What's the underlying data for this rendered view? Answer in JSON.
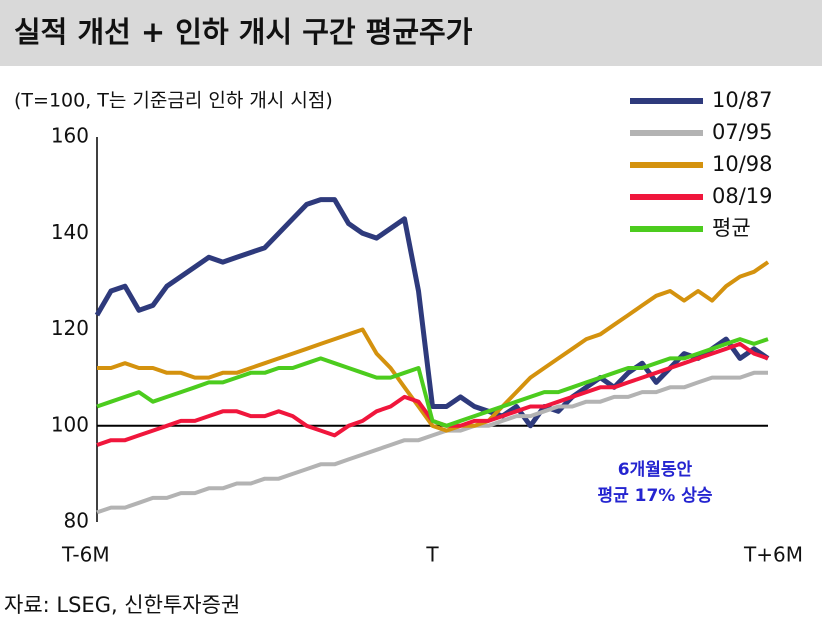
{
  "chart_data": {
    "type": "line",
    "title": "실적 개선 + 인하 개시 구간 평균주가",
    "subtitle": "(T=100, T는 기준금리 인하 개시 시점)",
    "source": "자료: LSEG, 신한투자증권",
    "annotation": [
      "6개월동안",
      "평균 17% 상승"
    ],
    "categories": [
      "T-6M",
      null,
      null,
      null,
      null,
      null,
      null,
      null,
      null,
      null,
      null,
      null,
      null,
      null,
      null,
      null,
      null,
      null,
      null,
      null,
      null,
      null,
      null,
      null,
      "T",
      null,
      null,
      null,
      null,
      null,
      null,
      null,
      null,
      null,
      null,
      null,
      null,
      null,
      null,
      null,
      null,
      null,
      null,
      null,
      null,
      null,
      null,
      null,
      "T+6M"
    ],
    "ylim": [
      80,
      160
    ],
    "yticks": [
      80,
      100,
      120,
      140,
      160
    ],
    "reference_line": 100,
    "series": [
      {
        "name": "10/87",
        "color": "#2e3a7c",
        "values": [
          123,
          128,
          129,
          124,
          125,
          129,
          131,
          133,
          135,
          134,
          135,
          136,
          137,
          140,
          143,
          146,
          147,
          147,
          142,
          140,
          139,
          141,
          143,
          128,
          104,
          104,
          106,
          104,
          103,
          102,
          104,
          100,
          104,
          103,
          106,
          108,
          110,
          108,
          111,
          113,
          109,
          112,
          115,
          114,
          116,
          118,
          114,
          116,
          114
        ]
      },
      {
        "name": "07/95",
        "color": "#b3b3b3",
        "values": [
          82,
          83,
          83,
          84,
          85,
          85,
          86,
          86,
          87,
          87,
          88,
          88,
          89,
          89,
          90,
          91,
          92,
          92,
          93,
          94,
          95,
          96,
          97,
          97,
          98,
          99,
          99,
          100,
          100,
          101,
          102,
          102,
          103,
          104,
          104,
          105,
          105,
          106,
          106,
          107,
          107,
          108,
          108,
          109,
          110,
          110,
          110,
          111,
          111
        ]
      },
      {
        "name": "10/98",
        "color": "#d4920e",
        "values": [
          112,
          112,
          113,
          112,
          112,
          111,
          111,
          110,
          110,
          111,
          111,
          112,
          113,
          114,
          115,
          116,
          117,
          118,
          119,
          120,
          115,
          112,
          108,
          104,
          100,
          99,
          100,
          100,
          101,
          104,
          107,
          110,
          112,
          114,
          116,
          118,
          119,
          121,
          123,
          125,
          127,
          128,
          126,
          128,
          126,
          129,
          131,
          132,
          134
        ]
      },
      {
        "name": "08/19",
        "color": "#f0163c",
        "values": [
          96,
          97,
          97,
          98,
          99,
          100,
          101,
          101,
          102,
          103,
          103,
          102,
          102,
          103,
          102,
          100,
          99,
          98,
          100,
          101,
          103,
          104,
          106,
          105,
          101,
          100,
          100,
          101,
          101,
          102,
          103,
          104,
          104,
          105,
          106,
          107,
          108,
          108,
          109,
          110,
          111,
          112,
          113,
          114,
          115,
          116,
          117,
          115,
          114
        ]
      },
      {
        "name": "평균",
        "color": "#4ccc1e",
        "values": [
          104,
          105,
          106,
          107,
          105,
          106,
          107,
          108,
          109,
          109,
          110,
          111,
          111,
          112,
          112,
          113,
          114,
          113,
          112,
          111,
          110,
          110,
          111,
          112,
          101,
          100,
          101,
          102,
          103,
          104,
          105,
          106,
          107,
          107,
          108,
          109,
          110,
          111,
          112,
          112,
          113,
          114,
          114,
          115,
          116,
          117,
          118,
          117,
          118
        ]
      }
    ]
  }
}
